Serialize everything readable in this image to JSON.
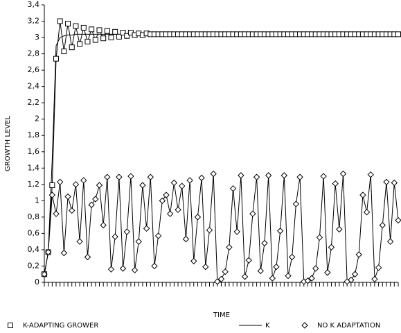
{
  "chart_data": {
    "type": "line",
    "xlabel": "TIME",
    "ylabel": "GROWTH LEVEL",
    "x": [
      0,
      1,
      2,
      3,
      4,
      5,
      6,
      7,
      8,
      9,
      10,
      11,
      12,
      13,
      14,
      15,
      16,
      17,
      18,
      19,
      20,
      21,
      22,
      23,
      24,
      25,
      26,
      27,
      28,
      29,
      30,
      31,
      32,
      33,
      34,
      35,
      36,
      37,
      38,
      39,
      40,
      41,
      42,
      43,
      44,
      45,
      46,
      47,
      48,
      49,
      50,
      51,
      52,
      53,
      54,
      55,
      56,
      57,
      58,
      59,
      60,
      61,
      62,
      63,
      64,
      65,
      66,
      67,
      68,
      69,
      70,
      71,
      72,
      73,
      74,
      75,
      76,
      77,
      78,
      79,
      80,
      81,
      82,
      83,
      84,
      85,
      86,
      87,
      88,
      89,
      90
    ],
    "xlim": [
      0,
      90
    ],
    "xticks": [
      0,
      1,
      2,
      3,
      4,
      5,
      6,
      7,
      8,
      9,
      10,
      11,
      12,
      13,
      14,
      15,
      16,
      17,
      18,
      19,
      20,
      21,
      22,
      23,
      24,
      25,
      26,
      27,
      28,
      29,
      30,
      31,
      32,
      33,
      34,
      35,
      36,
      37,
      38,
      39,
      40,
      41,
      42,
      43,
      44,
      45,
      46,
      47,
      48,
      49,
      50,
      51,
      52,
      53,
      54,
      55,
      56,
      57,
      58,
      59,
      60,
      61,
      62,
      63,
      64,
      65,
      66,
      67,
      68,
      69,
      70,
      71,
      72,
      73,
      74,
      75,
      76,
      77,
      78,
      79,
      80,
      81,
      82,
      83,
      84,
      85,
      86,
      87,
      88,
      89,
      90
    ],
    "ylim": [
      0,
      3.4
    ],
    "yticks": [
      0,
      {
        "value": 0.2,
        "label": "0,2"
      },
      {
        "value": 0.4,
        "label": "0,4"
      },
      {
        "value": 0.6,
        "label": "0,6"
      },
      {
        "value": 0.8,
        "label": "0,8"
      },
      1,
      {
        "value": 1.2,
        "label": "1,2"
      },
      {
        "value": 1.4,
        "label": "1,4"
      },
      {
        "value": 1.6,
        "label": "1,6"
      },
      {
        "value": 1.8,
        "label": "1,8"
      },
      2,
      {
        "value": 2.2,
        "label": "2,2"
      },
      {
        "value": 2.4,
        "label": "2,4"
      },
      {
        "value": 2.6,
        "label": "2,6"
      },
      {
        "value": 2.8,
        "label": "2,8"
      },
      3,
      {
        "value": 3.2,
        "label": "3,2"
      },
      {
        "value": 3.4,
        "label": "3,4"
      }
    ],
    "series": [
      {
        "name": "K-ADAPTING GROWER",
        "color": "#000000",
        "marker": "square",
        "values": [
          0.1,
          0.37,
          1.19,
          2.74,
          3.2,
          2.83,
          3.17,
          2.88,
          3.14,
          2.92,
          3.12,
          2.95,
          3.1,
          2.97,
          3.09,
          2.99,
          3.08,
          3.0,
          3.07,
          3.01,
          3.06,
          3.02,
          3.06,
          3.03,
          3.05,
          3.03,
          3.05,
          3.04,
          3.04,
          3.04,
          3.04,
          3.04,
          3.04,
          3.04,
          3.04,
          3.04,
          3.04,
          3.04,
          3.04,
          3.04,
          3.04,
          3.04,
          3.04,
          3.04,
          3.04,
          3.04,
          3.04,
          3.04,
          3.04,
          3.04,
          3.04,
          3.04,
          3.04,
          3.04,
          3.04,
          3.04,
          3.04,
          3.04,
          3.04,
          3.04,
          3.04,
          3.04,
          3.04,
          3.04,
          3.04,
          3.04,
          3.04,
          3.04,
          3.04,
          3.04,
          3.04,
          3.04,
          3.04,
          3.04,
          3.04,
          3.04,
          3.04,
          3.04,
          3.04,
          3.04,
          3.04,
          3.04,
          3.04,
          3.04,
          3.04,
          3.04,
          3.04,
          3.04,
          3.04,
          3.04,
          3.04
        ]
      },
      {
        "name": "K",
        "color": "#000000",
        "marker": "none",
        "values": [
          0.1,
          0.37,
          1.5,
          2.9,
          3.0,
          3.02,
          3.03,
          3.03,
          3.04,
          3.04,
          3.04,
          3.04,
          3.04,
          3.04,
          3.04,
          3.04,
          3.04,
          3.04,
          3.04,
          3.04,
          3.04,
          3.04,
          3.04,
          3.04,
          3.04,
          3.04,
          3.04,
          3.04,
          3.04,
          3.04,
          3.04,
          3.04,
          3.04,
          3.04,
          3.04,
          3.04,
          3.04,
          3.04,
          3.04,
          3.04,
          3.04,
          3.04,
          3.04,
          3.04,
          3.04,
          3.04,
          3.04,
          3.04,
          3.04,
          3.04,
          3.04,
          3.04,
          3.04,
          3.04,
          3.04,
          3.04,
          3.04,
          3.04,
          3.04,
          3.04,
          3.04,
          3.04,
          3.04,
          3.04,
          3.04,
          3.04,
          3.04,
          3.04,
          3.04,
          3.04,
          3.04,
          3.04,
          3.04,
          3.04,
          3.04,
          3.04,
          3.04,
          3.04,
          3.04,
          3.04,
          3.04,
          3.04,
          3.04,
          3.04,
          3.04,
          3.04,
          3.04,
          3.04,
          3.04,
          3.04,
          3.04
        ]
      },
      {
        "name": "NO K ADAPTATION",
        "color": "#000000",
        "marker": "diamond",
        "values": [
          0.1,
          0.37,
          1.07,
          0.84,
          1.23,
          0.36,
          1.05,
          0.88,
          1.2,
          0.5,
          1.25,
          0.31,
          0.95,
          1.02,
          1.19,
          0.7,
          1.29,
          0.16,
          0.56,
          1.29,
          0.17,
          0.62,
          1.3,
          0.15,
          0.5,
          1.19,
          0.66,
          1.29,
          0.2,
          0.57,
          1.0,
          1.07,
          0.84,
          1.22,
          0.89,
          1.18,
          0.53,
          1.25,
          0.26,
          0.8,
          1.28,
          0.19,
          0.64,
          1.33,
          0.01,
          0.04,
          0.13,
          0.43,
          1.15,
          0.62,
          1.31,
          0.07,
          0.27,
          0.84,
          1.29,
          0.14,
          0.48,
          1.31,
          0.05,
          0.19,
          0.63,
          1.31,
          0.08,
          0.31,
          0.96,
          1.29,
          0.01,
          0.02,
          0.05,
          0.17,
          0.55,
          1.3,
          0.12,
          0.43,
          1.21,
          0.65,
          1.33,
          0.01,
          0.03,
          0.1,
          0.34,
          1.07,
          0.86,
          1.32,
          0.04,
          0.18,
          0.7,
          1.23,
          0.5,
          1.22,
          0.76
        ]
      }
    ]
  }
}
